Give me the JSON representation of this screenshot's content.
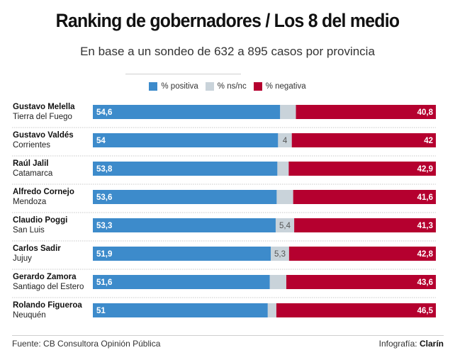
{
  "chart_data": {
    "type": "bar",
    "orientation": "horizontal",
    "stacked": true,
    "title": "Ranking de gobernadores / Los 8 del medio",
    "subtitle": "En base a un sondeo de 632 a 895 casos por provincia",
    "legend": {
      "placement": "top-center",
      "entries": [
        "% positiva",
        "% ns/nc",
        "% negativa"
      ]
    },
    "colors": {
      "positiva": "#3d8bcb",
      "nsnc": "#c9d3da",
      "negativa": "#b5002f"
    },
    "categories": [
      {
        "name": "Gustavo Melella",
        "province": "Tierra del Fuego"
      },
      {
        "name": "Gustavo Valdés",
        "province": "Corrientes"
      },
      {
        "name": "Raúl Jalil",
        "province": "Catamarca"
      },
      {
        "name": "Alfredo Cornejo",
        "province": "Mendoza"
      },
      {
        "name": "Claudio Poggi",
        "province": "San Luis"
      },
      {
        "name": "Carlos Sadir",
        "province": "Jujuy"
      },
      {
        "name": "Gerardo Zamora",
        "province": "Santiago del Estero"
      },
      {
        "name": "Rolando Figueroa",
        "province": "Neuquén"
      }
    ],
    "series": [
      {
        "name": "% positiva",
        "values": [
          54.6,
          54,
          53.8,
          53.6,
          53.3,
          51.9,
          51.6,
          51
        ],
        "labels": [
          "54,6",
          "54",
          "53,8",
          "53,6",
          "53,3",
          "51,9",
          "51,6",
          "51"
        ]
      },
      {
        "name": "% ns/nc",
        "values": [
          4.6,
          4,
          3.3,
          4.8,
          5.4,
          5.3,
          4.8,
          2.5
        ],
        "labels": [
          "",
          "4",
          "",
          "",
          "5,4",
          "5,3",
          "",
          ""
        ]
      },
      {
        "name": "% negativa",
        "values": [
          40.8,
          42,
          42.9,
          41.6,
          41.3,
          42.8,
          43.6,
          46.5
        ],
        "labels": [
          "40,8",
          "42",
          "42,9",
          "41,6",
          "41,3",
          "42,8",
          "43,6",
          "46,5"
        ]
      }
    ],
    "xlim": [
      0,
      100
    ],
    "xlabel": "",
    "ylabel": "",
    "grid": false
  },
  "footer": {
    "source": "Fuente: CB Consultora Opinión Pública",
    "credit_prefix": "Infografía: ",
    "credit_brand": "Clarín"
  }
}
